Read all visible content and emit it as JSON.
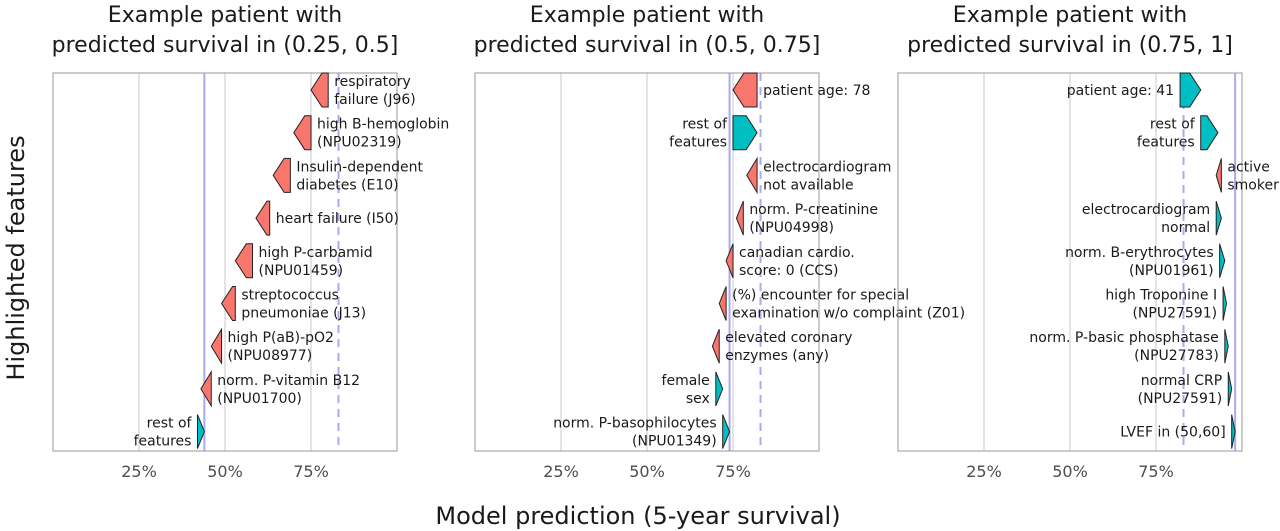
{
  "colors": {
    "positive": "#f8766d",
    "negative": "#00bfc4",
    "ref": "#aaaaee",
    "grid": "#dcdcdc",
    "frame": "#999999"
  },
  "figure": {
    "xlabel": "Model prediction (5-year survival)",
    "ylabel": "Highlighted features"
  },
  "chart_data": [
    {
      "type": "waterfall",
      "title": [
        "Example patient with",
        "predicted survival in (0.25, 0.5]"
      ],
      "xlim": [
        0,
        1
      ],
      "xticks": [
        "25%",
        "50%",
        "75%"
      ],
      "reference_solid": 0.44,
      "reference_dashed": 0.83,
      "features": [
        {
          "label": [
            "respiratory",
            "failure (J96)"
          ],
          "start": 0.8,
          "end": 0.75
        },
        {
          "label": [
            "high B-hemoglobin",
            "(NPU02319)"
          ],
          "start": 0.75,
          "end": 0.7
        },
        {
          "label": [
            "Insulin-dependent",
            "diabetes (E10)"
          ],
          "start": 0.69,
          "end": 0.64
        },
        {
          "label": [
            "heart failure (I50)"
          ],
          "start": 0.63,
          "end": 0.59
        },
        {
          "label": [
            "high P-carbamid",
            "(NPU01459)"
          ],
          "start": 0.58,
          "end": 0.53
        },
        {
          "label": [
            "streptococcus",
            "pneumoniae (J13)"
          ],
          "start": 0.53,
          "end": 0.49
        },
        {
          "label": [
            "high P(aB)-pO2",
            "(NPU08977)"
          ],
          "start": 0.49,
          "end": 0.46
        },
        {
          "label": [
            "norm. P-vitamin B12",
            "(NPU01700)"
          ],
          "start": 0.46,
          "end": 0.43
        },
        {
          "label": [
            "rest of",
            "features"
          ],
          "start": 0.42,
          "end": 0.44
        }
      ]
    },
    {
      "type": "waterfall",
      "title": [
        "Example patient with",
        "predicted survival in (0.5, 0.75]"
      ],
      "xlim": [
        0,
        1
      ],
      "xticks": [
        "25%",
        "50%",
        "75%"
      ],
      "reference_solid": 0.74,
      "reference_dashed": 0.83,
      "features": [
        {
          "label": [
            "patient age: 78"
          ],
          "start": 0.82,
          "end": 0.75
        },
        {
          "label": [
            "rest of",
            "features"
          ],
          "start": 0.75,
          "end": 0.82
        },
        {
          "label": [
            "electrocardiogram",
            "not available"
          ],
          "start": 0.82,
          "end": 0.79
        },
        {
          "label": [
            "norm. P-creatinine",
            "(NPU04998)"
          ],
          "start": 0.78,
          "end": 0.76
        },
        {
          "label": [
            "canadian cardio.",
            "score: 0 (CCS)"
          ],
          "start": 0.75,
          "end": 0.73
        },
        {
          "label": [
            "(%) encounter  for special",
            "examination w/o complaint (Z01)"
          ],
          "start": 0.73,
          "end": 0.71
        },
        {
          "label": [
            "elevated coronary",
            "enzymes (any)"
          ],
          "start": 0.71,
          "end": 0.69
        },
        {
          "label": [
            "female",
            "sex"
          ],
          "start": 0.7,
          "end": 0.72
        },
        {
          "label": [
            "norm. P-basophilocytes",
            "(NPU01349)"
          ],
          "start": 0.72,
          "end": 0.74
        }
      ]
    },
    {
      "type": "waterfall",
      "title": [
        "Example patient with",
        "predicted survival in (0.75, 1]"
      ],
      "xlim": [
        0,
        1
      ],
      "xticks": [
        "25%",
        "50%",
        "75%"
      ],
      "reference_solid": 0.98,
      "reference_dashed": 0.83,
      "features": [
        {
          "label": [
            "patient age: 41"
          ],
          "start": 0.82,
          "end": 0.88
        },
        {
          "label": [
            "rest of",
            "features"
          ],
          "start": 0.88,
          "end": 0.93
        },
        {
          "label": [
            "active",
            "smoker"
          ],
          "start": 0.94,
          "end": 0.925
        },
        {
          "label": [
            "electrocardiogram",
            "normal"
          ],
          "start": 0.925,
          "end": 0.94
        },
        {
          "label": [
            "norm. B-erythrocytes",
            "(NPU01961)"
          ],
          "start": 0.935,
          "end": 0.95
        },
        {
          "label": [
            "high Troponine I",
            "(NPU27591)"
          ],
          "start": 0.945,
          "end": 0.955
        },
        {
          "label": [
            "norm. P-basic phosphatase",
            "(NPU27783)"
          ],
          "start": 0.95,
          "end": 0.96
        },
        {
          "label": [
            "normal CRP",
            "(NPU27591)"
          ],
          "start": 0.96,
          "end": 0.97
        },
        {
          "label": [
            "LVEF in (50,60]"
          ],
          "start": 0.97,
          "end": 0.98
        }
      ]
    }
  ]
}
